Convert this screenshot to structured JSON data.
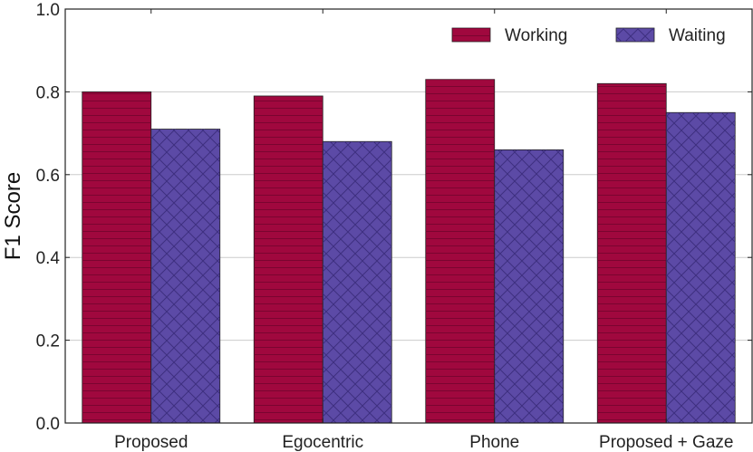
{
  "chart_data": {
    "type": "bar",
    "title": "",
    "xlabel": "",
    "ylabel": "F1 Score",
    "ylim": [
      0.0,
      1.0
    ],
    "yticks": [
      "0.0",
      "0.2",
      "0.4",
      "0.6",
      "0.8",
      "1.0"
    ],
    "grid": "horizontal",
    "legend_position": "top-right",
    "categories": [
      "Proposed",
      "Egocentric",
      "Phone",
      "Proposed + Gaze"
    ],
    "series": [
      {
        "name": "Working",
        "values": [
          0.8,
          0.79,
          0.83,
          0.82
        ],
        "color": "#a0083e",
        "hatch": "horizontal-lines"
      },
      {
        "name": "Waiting",
        "values": [
          0.71,
          0.68,
          0.66,
          0.75
        ],
        "color": "#5c4aa6",
        "hatch": "crosshatch"
      }
    ]
  }
}
